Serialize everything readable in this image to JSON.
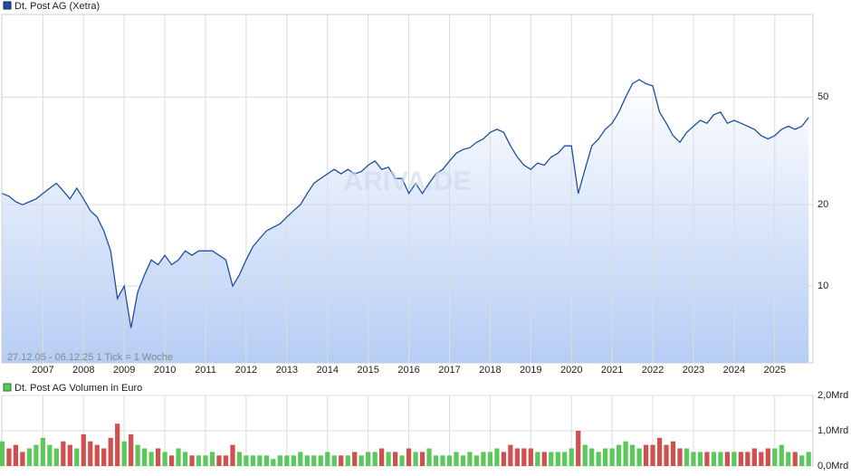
{
  "chart_data": [
    {
      "type": "line",
      "title": "Dt. Post AG (Xetra)",
      "subtitle": "27.12.05 - 06.12.25   1 Tick = 1 Woche",
      "watermark": "ARIVA.DE",
      "color": "#1f4fa0",
      "log_scale": true,
      "grid": true,
      "x": [
        2006.0,
        2006.167,
        2006.333,
        2006.5,
        2006.667,
        2006.833,
        2007.0,
        2007.167,
        2007.333,
        2007.5,
        2007.667,
        2007.833,
        2008.0,
        2008.167,
        2008.333,
        2008.5,
        2008.667,
        2008.833,
        2009.0,
        2009.167,
        2009.333,
        2009.5,
        2009.667,
        2009.833,
        2010.0,
        2010.167,
        2010.333,
        2010.5,
        2010.667,
        2010.833,
        2011.0,
        2011.167,
        2011.333,
        2011.5,
        2011.667,
        2011.833,
        2012.0,
        2012.167,
        2012.333,
        2012.5,
        2012.667,
        2012.833,
        2013.0,
        2013.167,
        2013.333,
        2013.5,
        2013.667,
        2013.833,
        2014.0,
        2014.167,
        2014.333,
        2014.5,
        2014.667,
        2014.833,
        2015.0,
        2015.167,
        2015.333,
        2015.5,
        2015.667,
        2015.833,
        2016.0,
        2016.167,
        2016.333,
        2016.5,
        2016.667,
        2016.833,
        2017.0,
        2017.167,
        2017.333,
        2017.5,
        2017.667,
        2017.833,
        2018.0,
        2018.167,
        2018.333,
        2018.5,
        2018.667,
        2018.833,
        2019.0,
        2019.167,
        2019.333,
        2019.5,
        2019.667,
        2019.833,
        2020.0,
        2020.167,
        2020.333,
        2020.5,
        2020.667,
        2020.833,
        2021.0,
        2021.167,
        2021.333,
        2021.5,
        2021.667,
        2021.833,
        2022.0,
        2022.167,
        2022.333,
        2022.5,
        2022.667,
        2022.833,
        2023.0,
        2023.167,
        2023.333,
        2023.5,
        2023.667,
        2023.833,
        2024.0,
        2024.167,
        2024.333,
        2024.5,
        2024.667,
        2024.833,
        2025.0,
        2025.167,
        2025.333,
        2025.5,
        2025.667,
        2025.833
      ],
      "values": [
        22,
        21.5,
        20.5,
        20,
        20.5,
        21,
        22,
        23,
        24,
        22.5,
        21,
        23,
        21,
        19,
        18,
        16,
        13.5,
        9,
        10,
        7,
        9.5,
        11,
        12.5,
        12,
        13,
        12,
        12.5,
        13.5,
        13,
        13.5,
        13.5,
        13.5,
        13,
        12.5,
        10,
        11,
        12.5,
        14,
        15,
        16,
        16.5,
        17,
        18,
        19,
        20,
        22,
        24,
        25,
        26,
        27,
        26,
        27,
        26,
        26.5,
        28,
        29,
        27,
        27.5,
        25,
        25,
        22,
        24,
        22,
        24,
        26,
        27,
        29,
        31,
        32,
        32.5,
        34,
        35,
        37,
        38,
        37,
        33,
        30,
        28,
        27,
        28.5,
        28,
        30,
        31,
        33,
        33,
        22,
        27,
        33,
        35,
        38,
        40,
        44,
        50,
        56,
        58,
        56,
        55,
        44,
        40,
        36,
        34,
        37,
        39,
        41,
        40,
        43,
        44,
        40,
        41,
        40,
        39,
        38,
        36,
        35,
        36,
        38,
        39,
        38,
        39,
        42
      ],
      "xlim": [
        2005.99,
        2025.94
      ],
      "xticks": [
        2007,
        2008,
        2009,
        2010,
        2011,
        2012,
        2013,
        2014,
        2015,
        2016,
        2017,
        2018,
        2019,
        2020,
        2021,
        2022,
        2023,
        2024,
        2025
      ],
      "ylim": [
        5.2,
        101
      ],
      "yticks": [
        10,
        20,
        50
      ]
    },
    {
      "type": "bar",
      "title": "Dt. Post AG Volumen in Euro",
      "color": "#5cc85c",
      "up_color": "#5cc85c",
      "down_color": "#d05050",
      "values": [
        0.7,
        0.5,
        0.6,
        0.4,
        0.5,
        0.6,
        0.8,
        0.6,
        0.5,
        0.7,
        0.6,
        0.5,
        0.9,
        0.7,
        0.6,
        0.5,
        0.8,
        1.2,
        0.7,
        0.9,
        0.6,
        0.5,
        0.4,
        0.5,
        0.4,
        0.3,
        0.5,
        0.4,
        0.3,
        0.3,
        0.3,
        0.4,
        0.3,
        0.3,
        0.6,
        0.4,
        0.3,
        0.3,
        0.3,
        0.3,
        0.2,
        0.3,
        0.3,
        0.3,
        0.4,
        0.3,
        0.3,
        0.3,
        0.4,
        0.3,
        0.3,
        0.3,
        0.4,
        0.3,
        0.4,
        0.4,
        0.5,
        0.4,
        0.4,
        0.3,
        0.5,
        0.4,
        0.4,
        0.5,
        0.3,
        0.3,
        0.3,
        0.4,
        0.3,
        0.4,
        0.3,
        0.4,
        0.4,
        0.5,
        0.4,
        0.6,
        0.5,
        0.5,
        0.5,
        0.4,
        0.4,
        0.4,
        0.4,
        0.4,
        0.5,
        1.0,
        0.6,
        0.5,
        0.4,
        0.5,
        0.5,
        0.6,
        0.7,
        0.6,
        0.5,
        0.6,
        0.6,
        0.8,
        0.6,
        0.7,
        0.5,
        0.5,
        0.4,
        0.4,
        0.4,
        0.4,
        0.4,
        0.4,
        0.4,
        0.4,
        0.4,
        0.5,
        0.4,
        0.5,
        0.5,
        0.6,
        0.4,
        0.4,
        0.3,
        0.4
      ],
      "ylim": [
        0,
        2.0
      ],
      "yticks": [
        {
          "value": 0,
          "label": "0,0Mrd"
        },
        {
          "value": 1.0,
          "label": "1,0Mrd"
        },
        {
          "value": 2.0,
          "label": "2,0Mrd"
        }
      ]
    }
  ]
}
